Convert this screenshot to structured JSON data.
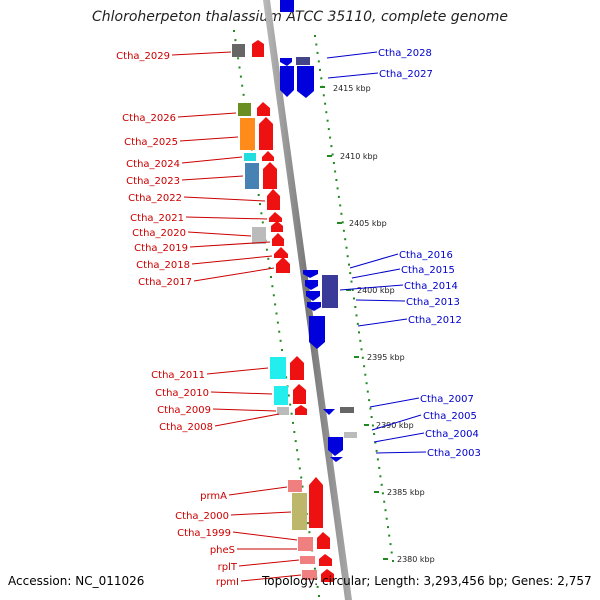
{
  "title": "Chloroherpeton thalassium ATCC 35110, complete genome",
  "footer": {
    "accession": "Accession: NC_011026",
    "summary": "Topology: circular; Length: 3,293,456 bp; Genes: 2,757"
  },
  "colors": {
    "forward_label": "#cc0000",
    "reverse_label": "#0000cc",
    "backbone": "#888888",
    "tick": "#228822"
  },
  "scale": {
    "unit": "kbp",
    "ticks": [
      {
        "label": "2415 kbp"
      },
      {
        "label": "2410 kbp"
      },
      {
        "label": "2405 kbp"
      },
      {
        "label": "2400 kbp"
      },
      {
        "label": "2395 kbp"
      },
      {
        "label": "2390 kbp"
      },
      {
        "label": "2385 kbp"
      },
      {
        "label": "2380 kbp"
      }
    ]
  },
  "left_labels": [
    {
      "text": "Ctha_2029"
    },
    {
      "text": "Ctha_2026"
    },
    {
      "text": "Ctha_2025"
    },
    {
      "text": "Ctha_2024"
    },
    {
      "text": "Ctha_2023"
    },
    {
      "text": "Ctha_2022"
    },
    {
      "text": "Ctha_2021"
    },
    {
      "text": "Ctha_2020"
    },
    {
      "text": "Ctha_2019"
    },
    {
      "text": "Ctha_2018"
    },
    {
      "text": "Ctha_2017"
    },
    {
      "text": "Ctha_2011"
    },
    {
      "text": "Ctha_2010"
    },
    {
      "text": "Ctha_2009"
    },
    {
      "text": "Ctha_2008"
    },
    {
      "text": "prmA"
    },
    {
      "text": "Ctha_2000"
    },
    {
      "text": "Ctha_1999"
    },
    {
      "text": "pheS"
    },
    {
      "text": "rplT"
    },
    {
      "text": "rpmI"
    }
  ],
  "right_labels": [
    {
      "text": "Ctha_2028"
    },
    {
      "text": "Ctha_2027"
    },
    {
      "text": "Ctha_2016"
    },
    {
      "text": "Ctha_2015"
    },
    {
      "text": "Ctha_2014"
    },
    {
      "text": "Ctha_2013"
    },
    {
      "text": "Ctha_2012"
    },
    {
      "text": "Ctha_2007"
    },
    {
      "text": "Ctha_2005"
    },
    {
      "text": "Ctha_2004"
    },
    {
      "text": "Ctha_2003"
    }
  ]
}
